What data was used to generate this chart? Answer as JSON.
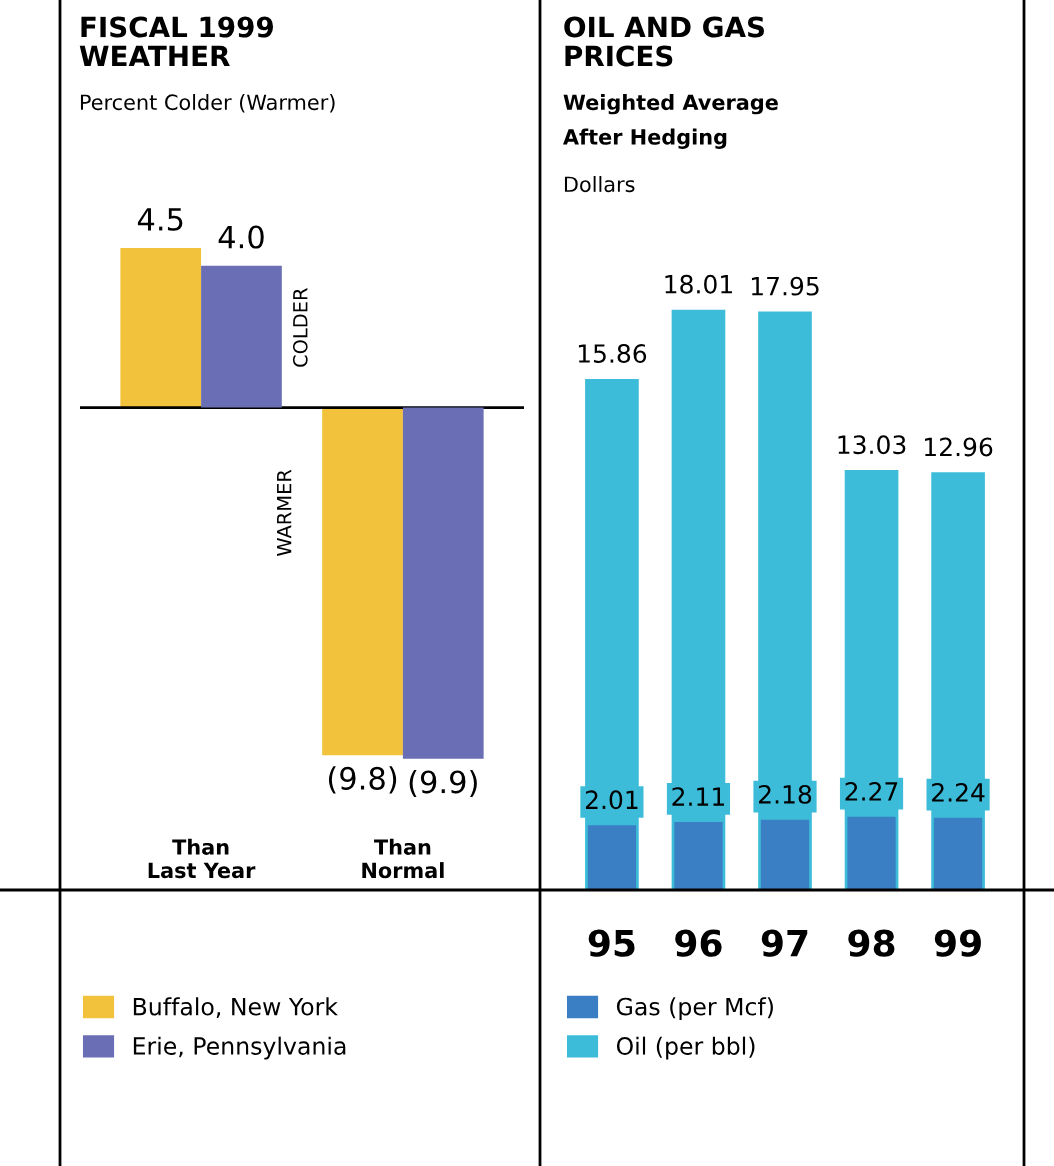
{
  "chart_data": [
    {
      "type": "bar",
      "title": "FISCAL 1999\nWEATHER",
      "subtitle": "Percent Colder (Warmer)",
      "categories": [
        "Than\nLast Year",
        "Than\nNormal"
      ],
      "series": [
        {
          "name": "Buffalo, New York",
          "color": "#f2c23c",
          "values": [
            4.5,
            -9.8
          ],
          "value_labels": [
            "4.5",
            "(9.8)"
          ]
        },
        {
          "name": "Erie, Pennsylvania",
          "color": "#6a6fb5",
          "values": [
            4.0,
            -9.9
          ],
          "value_labels": [
            "4.0",
            "(9.9)"
          ]
        }
      ],
      "annotations": [
        "COLDER",
        "WARMER"
      ],
      "legend": "bottom"
    },
    {
      "type": "bar",
      "title": "OIL AND GAS\nPRICES",
      "subtitle": "Weighted Average\nAfter Hedging",
      "ylabel": "Dollars",
      "categories": [
        "95",
        "96",
        "97",
        "98",
        "99"
      ],
      "series": [
        {
          "name": "Oil (per bbl)",
          "color": "#3cbcd8",
          "values": [
            15.86,
            18.01,
            17.95,
            13.03,
            12.96
          ]
        },
        {
          "name": "Gas (per Mcf)",
          "color": "#3a7fc4",
          "values": [
            2.01,
            2.11,
            2.18,
            2.27,
            2.24
          ]
        }
      ],
      "data_labels": true,
      "legend": "bottom"
    }
  ]
}
